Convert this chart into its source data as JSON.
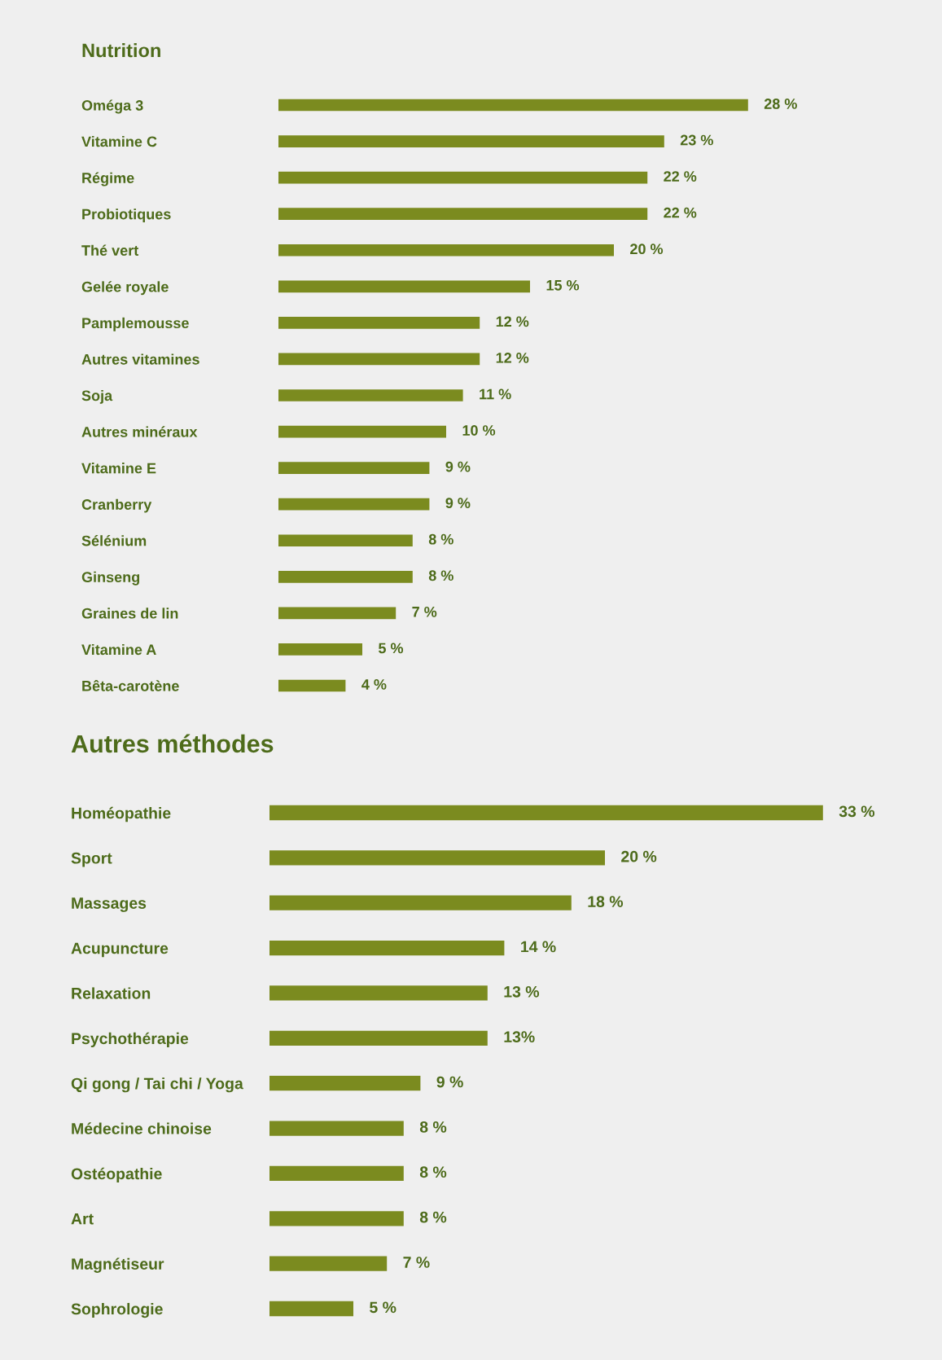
{
  "chart_data": [
    {
      "type": "bar",
      "orientation": "horizontal",
      "title": "Nutrition",
      "color": "#7b8b1f",
      "categories": [
        "Oméga 3",
        "Vitamine C",
        "Régime",
        "Probiotiques",
        "Thé vert",
        "Gelée royale",
        "Pamplemousse",
        "Autres vitamines",
        "Soja",
        "Autres minéraux",
        "Vitamine E",
        "Cranberry",
        "Sélénium",
        "Ginseng",
        "Graines de lin",
        "Vitamine A",
        "Bêta-carotène"
      ],
      "values": [
        28,
        23,
        22,
        22,
        20,
        15,
        12,
        12,
        11,
        10,
        9,
        9,
        8,
        8,
        7,
        5,
        4
      ],
      "value_labels": [
        "28 %",
        "23 %",
        "22 %",
        "22 %",
        "20 %",
        "15 %",
        "12 %",
        "12 %",
        "11 %",
        "10 %",
        "9 %",
        "9 %",
        "8 %",
        "8 %",
        "7 %",
        "5 %",
        "4 %"
      ],
      "tick_labels": "y",
      "grid": false,
      "legend": false
    },
    {
      "type": "bar",
      "orientation": "horizontal",
      "title": "Autres méthodes",
      "color": "#7b8b1f",
      "categories": [
        "Homéopathie",
        "Sport",
        "Massages",
        "Acupuncture",
        "Relaxation",
        "Psychothérapie",
        "Qi gong / Tai chi / Yoga",
        "Médecine chinoise",
        "Ostéopathie",
        "Art",
        "Magnétiseur",
        "Sophrologie"
      ],
      "values": [
        33,
        20,
        18,
        14,
        13,
        13,
        9,
        8,
        8,
        8,
        7,
        5
      ],
      "value_labels": [
        "33 %",
        "20 %",
        "18 %",
        "14 %",
        "13 %",
        "13%",
        "9 %",
        "8 %",
        "8 %",
        "8 %",
        "7 %",
        "5 %"
      ],
      "tick_labels": "y",
      "grid": false,
      "legend": false
    }
  ]
}
